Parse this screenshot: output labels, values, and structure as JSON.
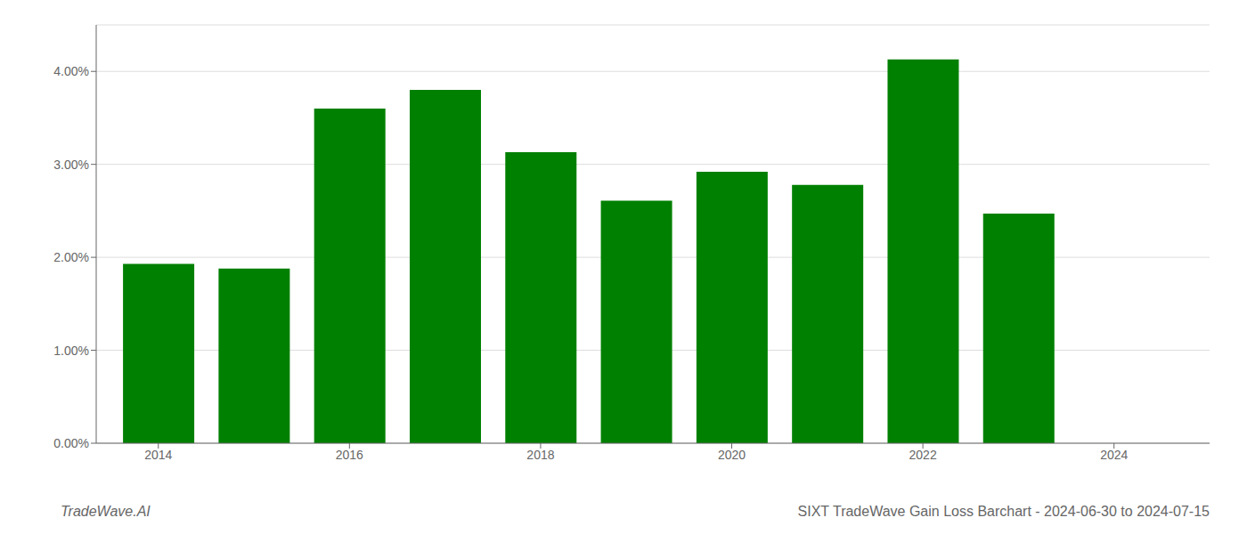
{
  "chart_data": {
    "type": "bar",
    "title": "SIXT TradeWave Gain Loss Barchart - 2024-06-30 to 2024-07-15",
    "annotation": "TradeWave.AI",
    "x": [
      2014,
      2015,
      2016,
      2017,
      2018,
      2019,
      2020,
      2021,
      2022,
      2023
    ],
    "values": [
      0.0193,
      0.0188,
      0.036,
      0.038,
      0.0313,
      0.0261,
      0.0292,
      0.0278,
      0.0413,
      0.0247
    ],
    "color": "#008000",
    "xlim": [
      2013.35,
      2025
    ],
    "xticks": [
      2014,
      2016,
      2018,
      2020,
      2022,
      2024
    ],
    "ylim": [
      0,
      0.045
    ],
    "yticks": [
      {
        "value": 0,
        "label": "0.00%"
      },
      {
        "value": 0.01,
        "label": "1.00%"
      },
      {
        "value": 0.02,
        "label": "2.00%"
      },
      {
        "value": 0.03,
        "label": "3.00%"
      },
      {
        "value": 0.04,
        "label": "4.00%"
      }
    ],
    "grid": true
  }
}
